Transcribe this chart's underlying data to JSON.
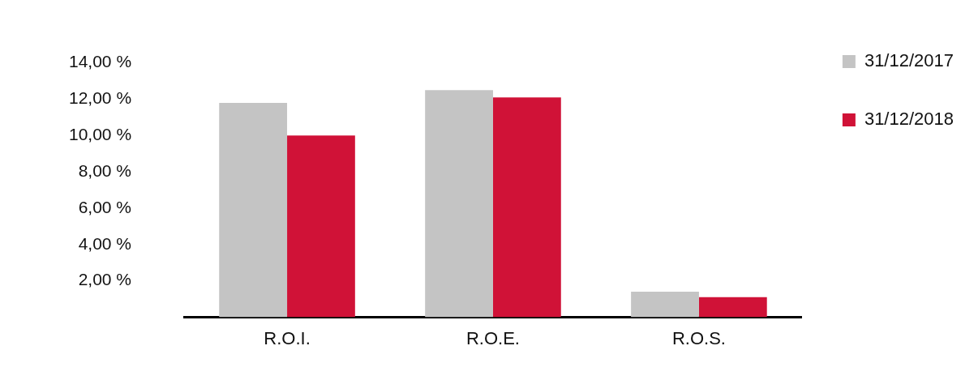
{
  "chart_data": {
    "type": "bar",
    "categories": [
      "R.O.I.",
      "R.O.E.",
      "R.O.S."
    ],
    "series": [
      {
        "name": "31/12/2017",
        "color": "#c4c4c4",
        "values": [
          11.8,
          12.5,
          1.4
        ]
      },
      {
        "name": "31/12/2018",
        "color": "#d01237",
        "values": [
          10.0,
          12.1,
          1.1
        ]
      }
    ],
    "ylim": [
      0,
      14
    ],
    "yticks": [
      {
        "value": 2,
        "label": "2,00 %"
      },
      {
        "value": 4,
        "label": "4,00 %"
      },
      {
        "value": 6,
        "label": "6,00 %"
      },
      {
        "value": 8,
        "label": "8,00 %"
      },
      {
        "value": 10,
        "label": "10,00 %"
      },
      {
        "value": 12,
        "label": "12,00 %"
      },
      {
        "value": 14,
        "label": "14,00 %"
      }
    ],
    "grid": false,
    "legend": "right"
  }
}
